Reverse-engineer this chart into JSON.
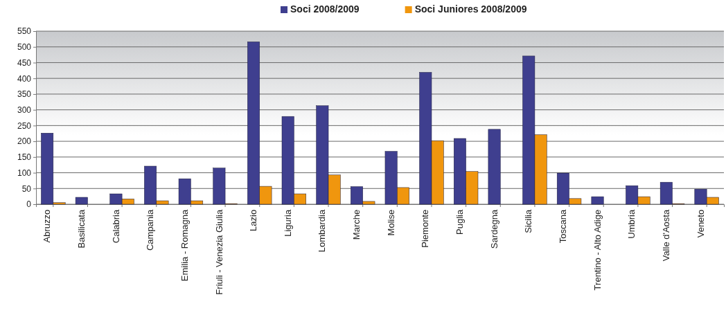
{
  "chart_data": {
    "type": "bar",
    "categories": [
      "Abruzzo",
      "Basilicata",
      "Calabria",
      "Campania",
      "Emilia - Romagna",
      "Friuli - Venezia Giulia",
      "Lazio",
      "Liguria",
      "Lombardia",
      "Marche",
      "Molise",
      "Piemonte",
      "Puglia",
      "Sardegna",
      "Sicilia",
      "Toscana",
      "Trentino - Alto Adige",
      "Umbria",
      "Valle d'Aosta",
      "Veneto"
    ],
    "series": [
      {
        "name": "Soci 2008/2009",
        "color": "#3f3f8f",
        "values": [
          226,
          22,
          33,
          121,
          81,
          115,
          516,
          279,
          313,
          56,
          168,
          419,
          209,
          238,
          471,
          99,
          24,
          59,
          70,
          48
        ]
      },
      {
        "name": "Soci Juniores 2008/2009",
        "color": "#f0960e",
        "values": [
          5,
          0,
          17,
          11,
          11,
          2,
          57,
          33,
          93,
          9,
          53,
          202,
          104,
          0,
          221,
          18,
          0,
          24,
          2,
          22
        ]
      }
    ],
    "ylim": [
      0,
      550
    ],
    "yticks": [
      0,
      50,
      100,
      150,
      200,
      250,
      300,
      350,
      400,
      450,
      500,
      550
    ],
    "grid": "y",
    "legend": "top"
  }
}
